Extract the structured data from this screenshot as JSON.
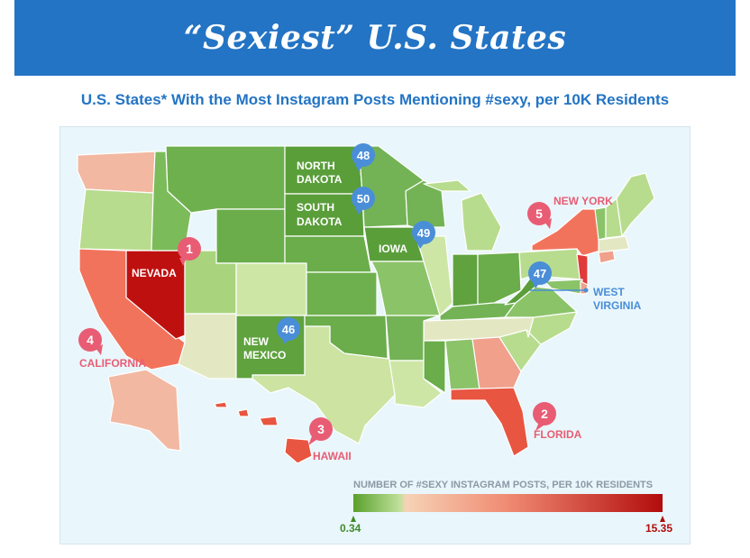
{
  "title": "“Sexiest” U.S. States",
  "subtitle": "U.S. States* With the Most Instagram Posts Mentioning #sexy, per 10K Residents",
  "legend": {
    "title": "NUMBER OF #SEXY INSTAGRAM POSTS, PER 10K RESIDENTS",
    "min": "0.34",
    "max": "15.35",
    "color_low": "#5aa02c",
    "color_high": "#b20c0c"
  },
  "colors": {
    "top_accent": "#e85d74",
    "bottom_accent": "#4a8ed8",
    "header_blue": "#2374c4"
  },
  "top_states": [
    {
      "rank": "1",
      "name": "NEVADA"
    },
    {
      "rank": "2",
      "name": "FLORIDA"
    },
    {
      "rank": "3",
      "name": "HAWAII"
    },
    {
      "rank": "4",
      "name": "CALIFORNIA"
    },
    {
      "rank": "5",
      "name": "NEW YORK"
    }
  ],
  "bottom_states": [
    {
      "rank": "46",
      "name": "NEW MEXICO"
    },
    {
      "rank": "47",
      "name": "WEST VIRGINIA"
    },
    {
      "rank": "48",
      "name": "NORTH DAKOTA"
    },
    {
      "rank": "49",
      "name": "IOWA"
    },
    {
      "rank": "50",
      "name": "SOUTH DAKOTA"
    }
  ]
}
